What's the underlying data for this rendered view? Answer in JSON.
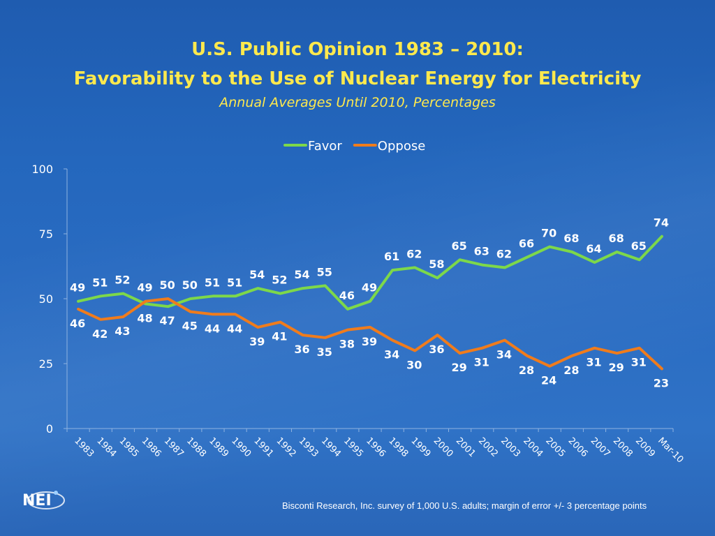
{
  "slide": {
    "title_line1": "U.S. Public Opinion 1983 – 2010:",
    "title_line2": "Favorability to the Use of Nuclear Energy for Electricity",
    "subtitle": "Annual Averages Until 2010, Percentages",
    "source": "Bisconti Research, Inc. survey of 1,000 U.S. adults; margin of error +/- 3 percentage points",
    "logo_text": "NEI"
  },
  "chart_data": {
    "type": "line",
    "categories": [
      "1983",
      "1984",
      "1985",
      "1986",
      "1987",
      "1988",
      "1989",
      "1990",
      "1991",
      "1992",
      "1993",
      "1994",
      "1995",
      "1996",
      "1998",
      "1999",
      "2000",
      "2001",
      "2002",
      "2003",
      "2004",
      "2005",
      "2006",
      "2007",
      "2008",
      "2009",
      "Mar-10"
    ],
    "series": [
      {
        "name": "Favor",
        "color": "#7dd84a",
        "values": [
          49,
          51,
          52,
          48,
          47,
          50,
          51,
          51,
          54,
          52,
          54,
          55,
          46,
          49,
          61,
          62,
          58,
          65,
          63,
          62,
          66,
          70,
          68,
          64,
          68,
          65,
          74
        ]
      },
      {
        "name": "Oppose",
        "color": "#f07c1c",
        "values": [
          46,
          42,
          43,
          49,
          50,
          45,
          44,
          44,
          39,
          41,
          36,
          35,
          38,
          39,
          34,
          30,
          36,
          29,
          31,
          34,
          28,
          24,
          28,
          31,
          29,
          31,
          23
        ]
      }
    ],
    "yticks": [
      0,
      25,
      50,
      75,
      100
    ],
    "ylim": [
      0,
      100
    ],
    "legend_position": "top-center",
    "grid": false
  }
}
